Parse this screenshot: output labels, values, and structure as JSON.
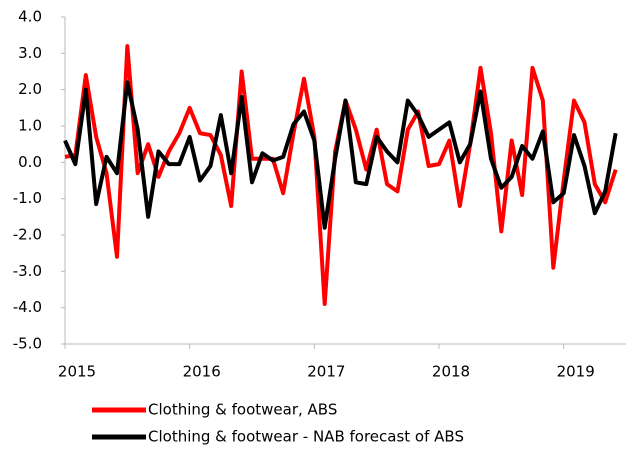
{
  "chart_data": {
    "type": "line",
    "x": [
      2015,
      2015.083,
      2015.167,
      2015.25,
      2015.333,
      2015.417,
      2015.5,
      2015.583,
      2015.667,
      2015.75,
      2015.833,
      2015.917,
      2016,
      2016.083,
      2016.167,
      2016.25,
      2016.333,
      2016.417,
      2016.5,
      2016.583,
      2016.667,
      2016.75,
      2016.833,
      2016.917,
      2017,
      2017.083,
      2017.167,
      2017.25,
      2017.333,
      2017.417,
      2017.5,
      2017.583,
      2017.667,
      2017.75,
      2017.833,
      2017.917,
      2018,
      2018.083,
      2018.167,
      2018.25,
      2018.333,
      2018.417,
      2018.5,
      2018.583,
      2018.667,
      2018.75,
      2018.833,
      2018.917,
      2019,
      2019.083,
      2019.167,
      2019.25,
      2019.333,
      2019.417
    ],
    "series": [
      {
        "name": "Clothing & footwear, ABS",
        "color": "#ff0000",
        "values": [
          0.15,
          0.2,
          2.4,
          0.7,
          -0.3,
          -2.6,
          3.2,
          -0.3,
          0.5,
          -0.4,
          0.3,
          0.8,
          1.5,
          0.8,
          0.75,
          0.2,
          -1.2,
          2.5,
          0.1,
          0.1,
          0.1,
          -0.85,
          0.8,
          2.3,
          0.7,
          -3.9,
          0.3,
          1.7,
          0.9,
          -0.2,
          0.9,
          -0.6,
          -0.8,
          0.9,
          1.4,
          -0.1,
          -0.05,
          0.6,
          -1.2,
          0.5,
          2.6,
          0.8,
          -1.9,
          0.6,
          -0.9,
          2.6,
          1.7,
          -2.9,
          -0.5,
          1.7,
          1.1,
          -0.6,
          -1.1,
          -0.2
        ]
      },
      {
        "name": "Clothing & footwear - NAB forecast of ABS",
        "color": "#000000",
        "values": [
          0.6,
          -0.05,
          2.0,
          -1.15,
          0.15,
          -0.3,
          2.2,
          0.9,
          -1.5,
          0.3,
          -0.05,
          -0.05,
          0.7,
          -0.5,
          -0.1,
          1.3,
          -0.3,
          1.8,
          -0.55,
          0.25,
          0.05,
          0.15,
          1.05,
          1.4,
          0.6,
          -1.8,
          0.1,
          1.7,
          -0.55,
          -0.6,
          0.7,
          0.3,
          0.0,
          1.7,
          1.3,
          0.7,
          0.9,
          1.1,
          0.0,
          0.5,
          1.95,
          0.1,
          -0.7,
          -0.4,
          0.45,
          0.1,
          0.85,
          -1.1,
          -0.85,
          0.75,
          -0.1,
          -1.4,
          -0.8,
          0.8
        ]
      }
    ],
    "xlim": [
      2015,
      2019.5
    ],
    "xticks": [
      2015,
      2016,
      2017,
      2018,
      2019
    ],
    "ylim": [
      -5,
      4
    ],
    "yticks": [
      {
        "value": 4,
        "label": "4.0"
      },
      {
        "value": 3,
        "label": "3.0"
      },
      {
        "value": 2,
        "label": "2.0"
      },
      {
        "value": 1,
        "label": "1.0"
      },
      {
        "value": 0,
        "label": "0.0"
      },
      {
        "value": -1,
        "label": "-1.0"
      },
      {
        "value": -2,
        "label": "-2.0"
      },
      {
        "value": -3,
        "label": "-3.0"
      },
      {
        "value": -4,
        "label": "-4.0"
      },
      {
        "value": -5,
        "label": "-5.0"
      }
    ],
    "grid": false,
    "legend": "bottom"
  }
}
